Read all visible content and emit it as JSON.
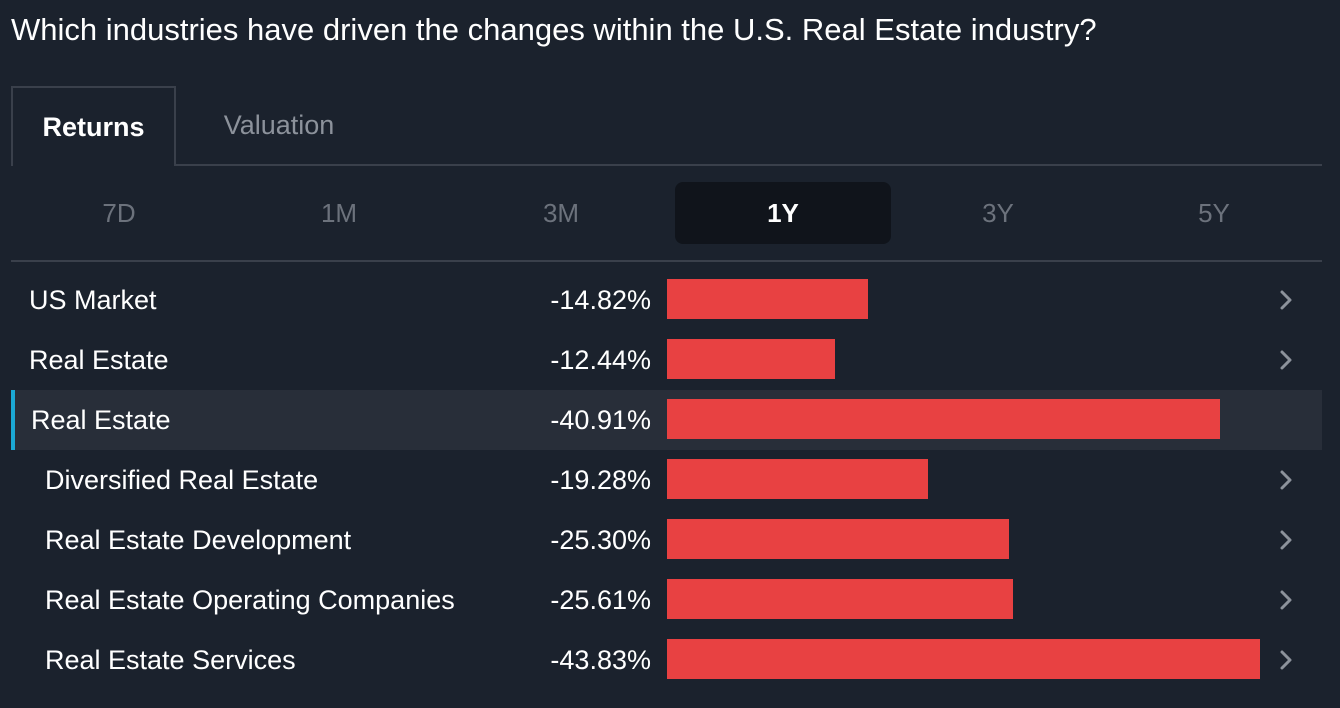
{
  "title": "Which industries have driven the changes within the U.S. Real Estate industry?",
  "tabs": [
    {
      "label": "Returns",
      "active": true
    },
    {
      "label": "Valuation",
      "active": false
    }
  ],
  "periods": [
    {
      "label": "7D",
      "active": false
    },
    {
      "label": "1M",
      "active": false
    },
    {
      "label": "3M",
      "active": false
    },
    {
      "label": "1Y",
      "active": true
    },
    {
      "label": "3Y",
      "active": false
    },
    {
      "label": "5Y",
      "active": false
    }
  ],
  "colors": {
    "background": "#1b222d",
    "bar_negative": "#e84142",
    "highlight_row": "#282e39",
    "highlight_accent": "#1ba8d4"
  },
  "chart_data": {
    "type": "bar",
    "orientation": "horizontal",
    "unit": "%",
    "period": "1Y",
    "rows": [
      {
        "label": "US Market",
        "display": "-14.82%",
        "value": -14.82,
        "level": 0,
        "highlighted": false,
        "chevron": true
      },
      {
        "label": "Real Estate",
        "display": "-12.44%",
        "value": -12.44,
        "level": 0,
        "highlighted": false,
        "chevron": true
      },
      {
        "label": "Real Estate",
        "display": "-40.91%",
        "value": -40.91,
        "level": 0,
        "highlighted": true,
        "chevron": false
      },
      {
        "label": "Diversified Real Estate",
        "display": "-19.28%",
        "value": -19.28,
        "level": 1,
        "highlighted": false,
        "chevron": true
      },
      {
        "label": "Real Estate Development",
        "display": "-25.30%",
        "value": -25.3,
        "level": 1,
        "highlighted": false,
        "chevron": true
      },
      {
        "label": "Real Estate Operating Companies",
        "display": "-25.61%",
        "value": -25.61,
        "level": 1,
        "highlighted": false,
        "chevron": true
      },
      {
        "label": "Real Estate Services",
        "display": "-43.83%",
        "value": -43.83,
        "level": 1,
        "highlighted": false,
        "chevron": true
      }
    ]
  }
}
